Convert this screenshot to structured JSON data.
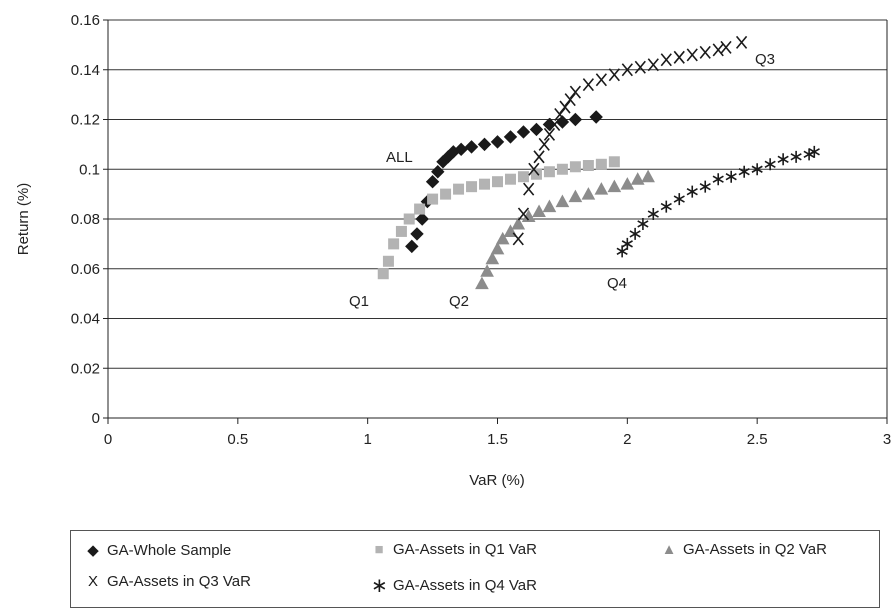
{
  "chart_data": {
    "type": "scatter",
    "title": "",
    "xlabel": "VaR (%)",
    "ylabel": "Return (%)",
    "xlim": [
      0,
      3
    ],
    "ylim": [
      0,
      0.16
    ],
    "x_ticks": [
      "0",
      "0.5",
      "1",
      "1.5",
      "2",
      "2.5",
      "3"
    ],
    "y_ticks": [
      "0",
      "0.02",
      "0.04",
      "0.06",
      "0.08",
      "0.1",
      "0.12",
      "0.14",
      "0.16"
    ],
    "grid": "horizontal",
    "legend_position": "bottom",
    "annotations": [
      "ALL",
      "Q1",
      "Q2",
      "Q3",
      "Q4"
    ],
    "series": [
      {
        "name": "GA-Whole Sample",
        "marker": "diamond",
        "color": "#1a1a1a",
        "x": [
          1.17,
          1.19,
          1.21,
          1.23,
          1.25,
          1.27,
          1.29,
          1.31,
          1.33,
          1.36,
          1.4,
          1.45,
          1.5,
          1.55,
          1.6,
          1.65,
          1.7,
          1.75,
          1.8,
          1.88
        ],
        "y": [
          0.069,
          0.074,
          0.08,
          0.087,
          0.095,
          0.099,
          0.103,
          0.105,
          0.107,
          0.108,
          0.109,
          0.11,
          0.111,
          0.113,
          0.115,
          0.116,
          0.118,
          0.119,
          0.12,
          0.121
        ]
      },
      {
        "name": "GA-Assets in Q1 VaR",
        "marker": "square",
        "color": "#b3b3b3",
        "x": [
          1.06,
          1.08,
          1.1,
          1.13,
          1.16,
          1.2,
          1.25,
          1.3,
          1.35,
          1.4,
          1.45,
          1.5,
          1.55,
          1.6,
          1.65,
          1.7,
          1.75,
          1.8,
          1.85,
          1.9,
          1.95
        ],
        "y": [
          0.058,
          0.063,
          0.07,
          0.075,
          0.08,
          0.084,
          0.088,
          0.09,
          0.092,
          0.093,
          0.094,
          0.095,
          0.096,
          0.097,
          0.098,
          0.099,
          0.1,
          0.101,
          0.1015,
          0.102,
          0.103
        ]
      },
      {
        "name": "GA-Assets in Q2 VaR",
        "marker": "triangle",
        "color": "#8c8c8c",
        "x": [
          1.44,
          1.46,
          1.48,
          1.5,
          1.52,
          1.55,
          1.58,
          1.62,
          1.66,
          1.7,
          1.75,
          1.8,
          1.85,
          1.9,
          1.95,
          2.0,
          2.04,
          2.08
        ],
        "y": [
          0.054,
          0.059,
          0.064,
          0.068,
          0.072,
          0.075,
          0.078,
          0.081,
          0.083,
          0.085,
          0.087,
          0.089,
          0.09,
          0.092,
          0.093,
          0.094,
          0.096,
          0.097
        ]
      },
      {
        "name": "GA-Assets in Q3 VaR",
        "marker": "x",
        "color": "#1a1a1a",
        "x": [
          1.58,
          1.6,
          1.62,
          1.64,
          1.66,
          1.68,
          1.7,
          1.72,
          1.74,
          1.76,
          1.78,
          1.8,
          1.85,
          1.9,
          1.95,
          2.0,
          2.05,
          2.1,
          2.15,
          2.2,
          2.25,
          2.3,
          2.35,
          2.38,
          2.44
        ],
        "y": [
          0.072,
          0.082,
          0.092,
          0.1,
          0.105,
          0.11,
          0.114,
          0.118,
          0.122,
          0.125,
          0.128,
          0.131,
          0.134,
          0.136,
          0.138,
          0.14,
          0.141,
          0.142,
          0.144,
          0.145,
          0.146,
          0.147,
          0.148,
          0.149,
          0.151
        ]
      },
      {
        "name": "GA-Assets in Q4 VaR",
        "marker": "star",
        "color": "#1a1a1a",
        "x": [
          1.98,
          2.0,
          2.03,
          2.06,
          2.1,
          2.15,
          2.2,
          2.25,
          2.3,
          2.35,
          2.4,
          2.45,
          2.5,
          2.55,
          2.6,
          2.65,
          2.7,
          2.72
        ],
        "y": [
          0.067,
          0.07,
          0.074,
          0.078,
          0.082,
          0.085,
          0.088,
          0.091,
          0.093,
          0.096,
          0.097,
          0.099,
          0.1,
          0.102,
          0.104,
          0.105,
          0.106,
          0.107
        ]
      }
    ]
  },
  "legend": {
    "items": [
      {
        "label": "GA-Whole Sample",
        "glyph": "◆"
      },
      {
        "label": "GA-Assets in Q1 VaR",
        "glyph": "■"
      },
      {
        "label": "GA-Assets in Q2 VaR",
        "glyph": "▲"
      },
      {
        "label": "GA-Assets in Q3 VaR",
        "glyph": "X"
      },
      {
        "label": "GA-Assets in Q4 VaR",
        "glyph": "∗"
      }
    ]
  }
}
